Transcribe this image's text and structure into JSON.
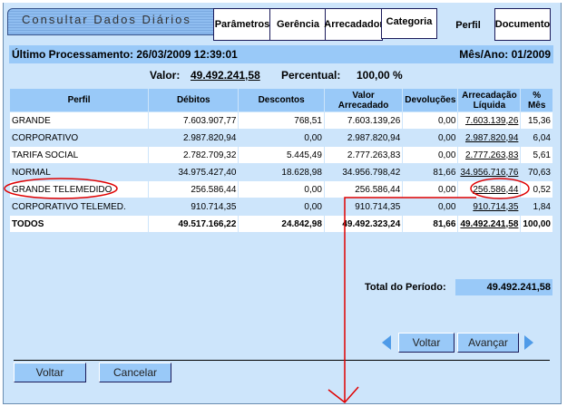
{
  "title": "Consultar Dados Diários",
  "tabs": [
    {
      "label": "Parâmetros"
    },
    {
      "label": "Gerência"
    },
    {
      "label": "Arrecadador"
    },
    {
      "label": "Categoria"
    },
    {
      "label": "Perfil",
      "active": true
    },
    {
      "label": "Documento"
    }
  ],
  "info": {
    "ultimo": "Último Processamento: 26/03/2009 12:39:01",
    "mes_ano": "Mês/Ano: 01/2009"
  },
  "summary": {
    "valor_label": "Valor:",
    "valor": "49.492.241,58",
    "percentual_label": "Percentual:",
    "percentual": "100,00 %"
  },
  "table": {
    "headers": [
      "Perfil",
      "Débitos",
      "Descontos",
      "Valor Arrecadado",
      "Devoluções",
      "Arrecadação Líquida",
      "% Mês"
    ],
    "rows": [
      [
        "GRANDE",
        "7.603.907,77",
        "768,51",
        "7.603.139,26",
        "0,00",
        "7.603.139,26",
        "15,36"
      ],
      [
        "CORPORATIVO",
        "2.987.820,94",
        "0,00",
        "2.987.820,94",
        "0,00",
        "2.987.820,94",
        "6,04"
      ],
      [
        "TARIFA SOCIAL",
        "2.782.709,32",
        "5.445,49",
        "2.777.263,83",
        "0,00",
        "2.777.263,83",
        "5,61"
      ],
      [
        "NORMAL",
        "34.975.427,40",
        "18.628,98",
        "34.956.798,42",
        "81,66",
        "34.956.716,76",
        "70,63"
      ],
      [
        "GRANDE TELEMEDIDO",
        "256.586,44",
        "0,00",
        "256.586,44",
        "0,00",
        "256.586,44",
        "0,52"
      ],
      [
        "CORPORATIVO TELEMED.",
        "910.714,35",
        "0,00",
        "910.714,35",
        "0,00",
        "910.714,35",
        "1,84"
      ]
    ],
    "total": [
      "TODOS",
      "49.517.166,22",
      "24.842,98",
      "49.492.323,24",
      "81,66",
      "49.492.241,58",
      "100,00"
    ]
  },
  "total_periodo": {
    "label": "Total do Período:",
    "value": "49.492.241,58"
  },
  "nav": {
    "voltar": "Voltar",
    "avancar": "Avançar"
  },
  "buttons": {
    "voltar": "Voltar",
    "cancelar": "Cancelar"
  },
  "colors": {
    "panel": "#cde5fb",
    "header": "#99c9f8",
    "annotation": "#e00000"
  }
}
